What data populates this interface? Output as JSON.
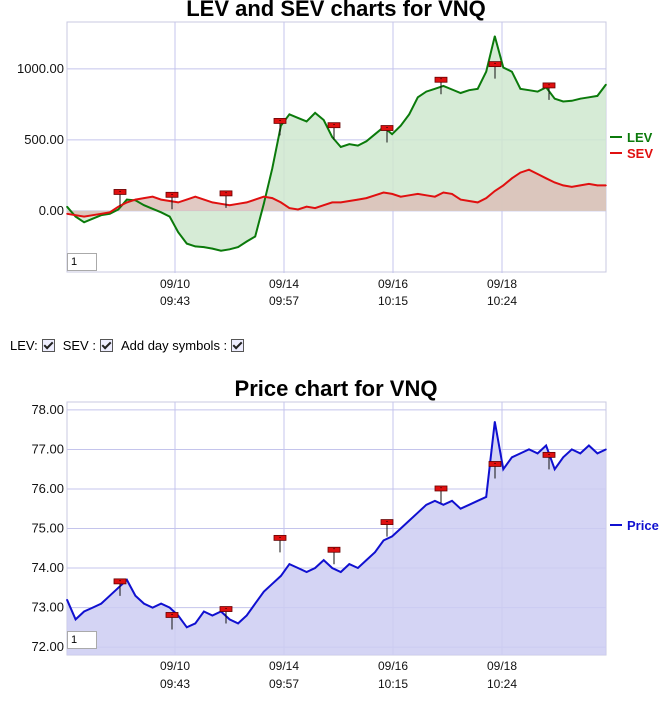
{
  "chart_data": [
    {
      "type": "area",
      "title": "LEV and SEV charts for VNQ",
      "ylim": [
        -430,
        1330
      ],
      "yticks": [
        "1000.00",
        "500.00",
        "0.00"
      ],
      "ytick_values": [
        1000,
        500,
        0
      ],
      "x_ticks": [
        {
          "date": "09/10",
          "time": "09:43"
        },
        {
          "date": "09/14",
          "time": "09:57"
        },
        {
          "date": "09/16",
          "time": "10:15"
        },
        {
          "date": "09/18",
          "time": "10:24"
        }
      ],
      "grid": true,
      "legend_position": "right",
      "series": [
        {
          "name": "LEV",
          "color": "#0b7a0b",
          "fill": "#cfe8cf",
          "values": [
            30,
            -40,
            -80,
            -55,
            -30,
            -20,
            10,
            80,
            75,
            40,
            15,
            -10,
            -40,
            -150,
            -230,
            -250,
            -255,
            -265,
            -280,
            -270,
            -255,
            -215,
            -180,
            50,
            300,
            600,
            680,
            655,
            630,
            690,
            640,
            520,
            450,
            470,
            460,
            490,
            540,
            590,
            540,
            600,
            680,
            800,
            840,
            860,
            880,
            855,
            830,
            850,
            860,
            980,
            1230,
            1010,
            980,
            860,
            850,
            840,
            870,
            790,
            770,
            775,
            790,
            800,
            810,
            890
          ]
        },
        {
          "name": "SEV",
          "color": "#e01010",
          "fill": "#dcc0b8",
          "values": [
            -20,
            -30,
            -40,
            -30,
            -20,
            -10,
            30,
            60,
            80,
            90,
            100,
            80,
            70,
            60,
            80,
            100,
            80,
            60,
            50,
            40,
            50,
            60,
            80,
            100,
            90,
            60,
            20,
            10,
            30,
            20,
            40,
            60,
            60,
            70,
            80,
            90,
            110,
            130,
            120,
            100,
            110,
            120,
            110,
            100,
            130,
            120,
            80,
            70,
            60,
            90,
            140,
            180,
            230,
            270,
            290,
            260,
            230,
            200,
            180,
            170,
            180,
            190,
            180,
            180
          ]
        }
      ],
      "markers": [
        {
          "label": "-",
          "value": 130
        },
        {
          "label": "-",
          "value": 110
        },
        {
          "label": "-",
          "value": 120
        },
        {
          "label": "-",
          "value": 630
        },
        {
          "label": "-",
          "value": 600
        },
        {
          "label": "-",
          "value": 580
        },
        {
          "label": "-",
          "value": 920
        },
        {
          "label": "-",
          "value": 1030
        },
        {
          "label": "-",
          "value": 880
        }
      ]
    },
    {
      "type": "area",
      "title": "Price chart for VNQ",
      "ylim": [
        71.8,
        78.2
      ],
      "yticks": [
        "78.00",
        "77.00",
        "76.00",
        "75.00",
        "74.00",
        "73.00",
        "72.00"
      ],
      "ytick_values": [
        78,
        77,
        76,
        75,
        74,
        73,
        72
      ],
      "x_ticks": [
        {
          "date": "09/10",
          "time": "09:43"
        },
        {
          "date": "09/14",
          "time": "09:57"
        },
        {
          "date": "09/16",
          "time": "10:15"
        },
        {
          "date": "09/18",
          "time": "10:24"
        }
      ],
      "grid": true,
      "legend_position": "right",
      "series": [
        {
          "name": "Price",
          "color": "#1010d0",
          "fill": "#cccdf2",
          "values": [
            73.2,
            72.7,
            72.9,
            73.0,
            73.1,
            73.3,
            73.5,
            73.7,
            73.3,
            73.1,
            73.0,
            73.1,
            73.0,
            72.8,
            72.5,
            72.6,
            72.9,
            72.8,
            72.9,
            72.7,
            72.6,
            72.8,
            73.1,
            73.4,
            73.6,
            73.8,
            74.1,
            74.0,
            73.9,
            74.0,
            74.2,
            74.0,
            73.9,
            74.1,
            74.0,
            74.2,
            74.4,
            74.7,
            74.8,
            75.0,
            75.2,
            75.4,
            75.6,
            75.7,
            75.6,
            75.7,
            75.5,
            75.6,
            75.7,
            75.8,
            77.7,
            76.5,
            76.8,
            76.9,
            77.0,
            76.9,
            77.1,
            76.5,
            76.8,
            77.0,
            76.9,
            77.1,
            76.9,
            77.0
          ]
        }
      ],
      "markers": [
        {
          "label": "-",
          "value": 73.65
        },
        {
          "label": "-",
          "value": 72.8
        },
        {
          "label": "-",
          "value": 72.95
        },
        {
          "label": "-",
          "value": 74.75
        },
        {
          "label": "-",
          "value": 74.45
        },
        {
          "label": "-",
          "value": 75.15
        },
        {
          "label": "-",
          "value": 76.0
        },
        {
          "label": "-",
          "value": 76.62
        },
        {
          "label": "-",
          "value": 76.85
        }
      ]
    }
  ],
  "controls": {
    "lev_label": "LEV:",
    "sev_label": "SEV :",
    "day_symbols_label": "Add day symbols :"
  },
  "zoom_value": "1"
}
